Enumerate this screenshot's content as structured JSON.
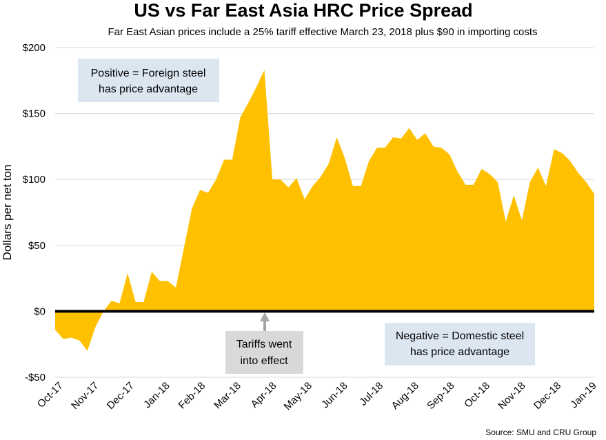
{
  "chart_data": {
    "type": "area",
    "title": "US vs Far East Asia HRC Price Spread",
    "subtitle": "Far East Asian prices include a 25% tariff effective March 23, 2018 plus $90 in importing costs",
    "ylabel": "Dollars per net ton",
    "xlabel": "",
    "ylim": [
      -50,
      200
    ],
    "y_ticks": [
      200,
      150,
      100,
      50,
      0,
      -50
    ],
    "y_tick_labels": [
      "$200",
      "$150",
      "$100",
      "$50",
      "$0",
      "-$50"
    ],
    "x_tick_labels": [
      "Oct-17",
      "Nov-17",
      "Dec-17",
      "Jan-18",
      "Feb-18",
      "Mar-18",
      "Apr-18",
      "May-18",
      "Jun-18",
      "Jul-18",
      "Aug-18",
      "Sep-18",
      "Oct-18",
      "Nov-18",
      "Dec-18",
      "Jan-19"
    ],
    "grid": true,
    "fill_color": "#FFC000",
    "zero_line_color": "#000000",
    "values": [
      -14,
      -21,
      -20,
      -22,
      -30,
      -12,
      0,
      8,
      6,
      29,
      7,
      7,
      30,
      23,
      23,
      18,
      48,
      78,
      92,
      90,
      100,
      115,
      115,
      147,
      158,
      170,
      183,
      100,
      100,
      94,
      101,
      85,
      95,
      102,
      112,
      132,
      116,
      95,
      95,
      114,
      124,
      124,
      132,
      131,
      139,
      130,
      135,
      125,
      124,
      119,
      106,
      96,
      96,
      108,
      104,
      98,
      68,
      88,
      69,
      98,
      109,
      95,
      123,
      120,
      114,
      105,
      98,
      89
    ],
    "annotations": {
      "positive_note": [
        "Positive = Foreign steel",
        "has price advantage"
      ],
      "negative_note": [
        "Negative = Domestic steel",
        "has price advantage"
      ],
      "tariff_note": [
        "Tariffs went",
        "into effect"
      ]
    },
    "annotation_colors": {
      "note_box_blue": "#DCE6F1",
      "note_box_gray": "#D9D9D9",
      "arrow": "#A6A6A6"
    },
    "source": "Source: SMU and CRU Group"
  }
}
